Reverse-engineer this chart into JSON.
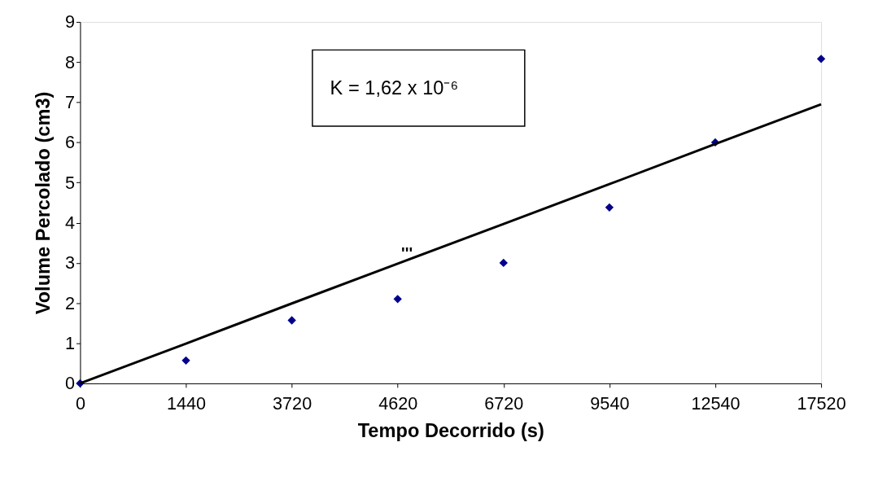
{
  "chart_data": {
    "type": "scatter",
    "xlabel": "Tempo Decorrido (s)",
    "ylabel": "Volume Percolado (cm3)",
    "categories": [
      "0",
      "1440",
      "3720",
      "4620",
      "6720",
      "9540",
      "12540",
      "17520"
    ],
    "series": [
      {
        "color": "#00008b",
        "marker": "diamond",
        "values": [
          0,
          0.57,
          1.57,
          2.1,
          3.0,
          4.38,
          6.0,
          8.08
        ]
      },
      {
        "type": "line",
        "color": "#000000",
        "line_style": "solid",
        "marker": "none",
        "values": [
          0,
          0.99,
          1.99,
          2.98,
          3.97,
          4.96,
          5.96,
          6.95
        ]
      }
    ],
    "ylim": [
      0,
      9
    ],
    "yticks": [
      0,
      1,
      2,
      3,
      4,
      5,
      6,
      7,
      8,
      9
    ],
    "annotations": [
      "K = 1,62 x 10⁻⁶",
      "'''"
    ]
  }
}
